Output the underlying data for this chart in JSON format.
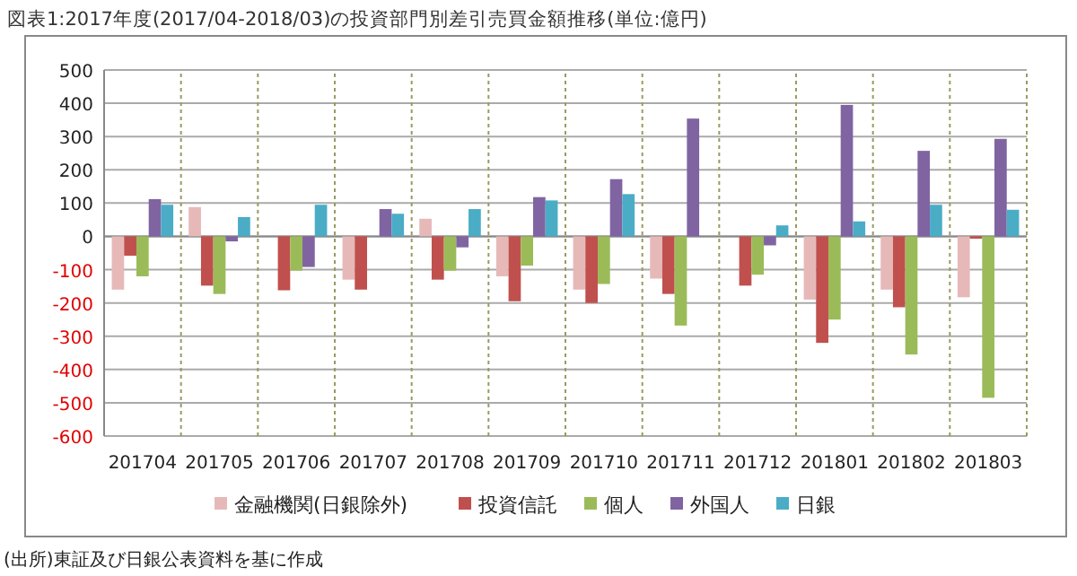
{
  "chart_data": {
    "type": "bar",
    "title": "図表1:2017年度(2017/04-2018/03)の投資部門別差引売買金額推移(単位:億円)",
    "categories": [
      "201704",
      "201705",
      "201706",
      "201707",
      "201708",
      "201709",
      "201710",
      "201711",
      "201712",
      "201801",
      "201802",
      "201803"
    ],
    "series": [
      {
        "name": "金融機関(日銀除外)",
        "color": "#e6b9b8",
        "values": [
          -160,
          88,
          null,
          -130,
          53,
          -120,
          -160,
          -127,
          null,
          -190,
          -160,
          -183
        ]
      },
      {
        "name": "投資信託",
        "color": "#c0504d",
        "values": [
          -58,
          -148,
          -162,
          -160,
          -130,
          -195,
          -200,
          -173,
          -148,
          -320,
          -213,
          -7
        ]
      },
      {
        "name": "個人",
        "color": "#9bbb59",
        "values": [
          -120,
          -173,
          -103,
          null,
          -103,
          -88,
          -143,
          -268,
          -115,
          -250,
          -355,
          -485
        ]
      },
      {
        "name": "外国人",
        "color": "#8064a2",
        "values": [
          112,
          -15,
          -92,
          82,
          -33,
          118,
          172,
          354,
          -27,
          395,
          257,
          293
        ]
      },
      {
        "name": "日銀",
        "color": "#4bacc6",
        "values": [
          95,
          58,
          95,
          68,
          82,
          108,
          127,
          null,
          33,
          45,
          95,
          80
        ]
      }
    ],
    "ylim": [
      -600,
      500
    ],
    "yticks": [
      -600,
      -500,
      -400,
      -300,
      -200,
      -100,
      0,
      100,
      200,
      300,
      400,
      500
    ],
    "grid": "y",
    "legend": "bottom",
    "annotations": [
      "(出所)東証及び日銀公表資料を基に作成"
    ]
  }
}
